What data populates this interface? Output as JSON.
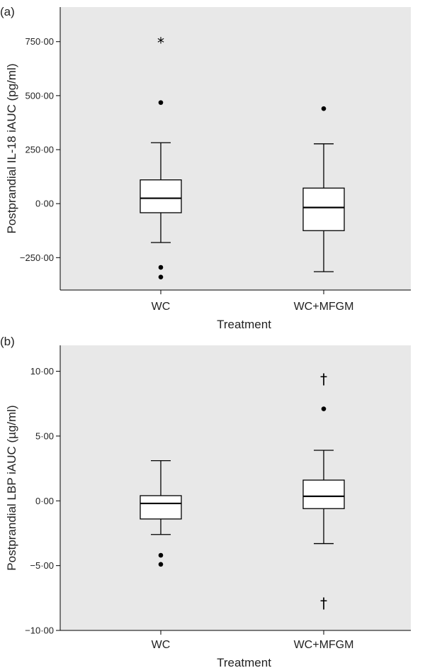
{
  "chart_data": [
    {
      "type": "box",
      "panel_label": "(a)",
      "xlabel": "Treatment",
      "ylabel": "Postprandial IL-18 iAUC (pg/ml)",
      "ylim": [
        -400,
        910
      ],
      "yticks": [
        -250,
        0,
        250,
        500,
        750
      ],
      "ytick_labels": [
        "−250·00",
        "0·00",
        "250·00",
        "500·00",
        "750·00"
      ],
      "grid": false,
      "categories": [
        "WC",
        "WC+MFGM"
      ],
      "boxes": [
        {
          "category": "WC",
          "whisker_low": -180,
          "q1": -42,
          "median": 25,
          "q3": 110,
          "whisker_high": 282,
          "outliers": [
            {
              "value": 468,
              "marker": "dot"
            },
            {
              "value": -295,
              "marker": "dot"
            },
            {
              "value": -340,
              "marker": "dot"
            },
            {
              "value": 760,
              "marker": "star"
            }
          ]
        },
        {
          "category": "WC+MFGM",
          "whisker_low": -315,
          "q1": -125,
          "median": -18,
          "q3": 72,
          "whisker_high": 277,
          "outliers": [
            {
              "value": 440,
              "marker": "dot"
            }
          ]
        }
      ]
    },
    {
      "type": "box",
      "panel_label": "(b)",
      "xlabel": "Treatment",
      "ylabel": "Postprandial LBP iAUC (µg/ml)",
      "ylim": [
        -10,
        12
      ],
      "yticks": [
        -10,
        -5,
        0,
        5,
        10
      ],
      "ytick_labels": [
        "−10·00",
        "−5·00",
        "0·00",
        "5·00",
        "10·00"
      ],
      "grid": false,
      "categories": [
        "WC",
        "WC+MFGM"
      ],
      "boxes": [
        {
          "category": "WC",
          "whisker_low": -2.6,
          "q1": -1.4,
          "median": -0.2,
          "q3": 0.4,
          "whisker_high": 3.1,
          "outliers": [
            {
              "value": -4.2,
              "marker": "dot"
            },
            {
              "value": -4.9,
              "marker": "dot"
            }
          ]
        },
        {
          "category": "WC+MFGM",
          "whisker_low": -3.3,
          "q1": -0.6,
          "median": 0.35,
          "q3": 1.6,
          "whisker_high": 3.9,
          "outliers": [
            {
              "value": 7.1,
              "marker": "dot"
            },
            {
              "value": 9.4,
              "marker": "dagger"
            },
            {
              "value": -7.9,
              "marker": "dagger"
            }
          ]
        }
      ]
    }
  ],
  "colors": {
    "plot_background": "#e8e8e8",
    "box_fill": "#ffffff",
    "line": "#000000"
  }
}
